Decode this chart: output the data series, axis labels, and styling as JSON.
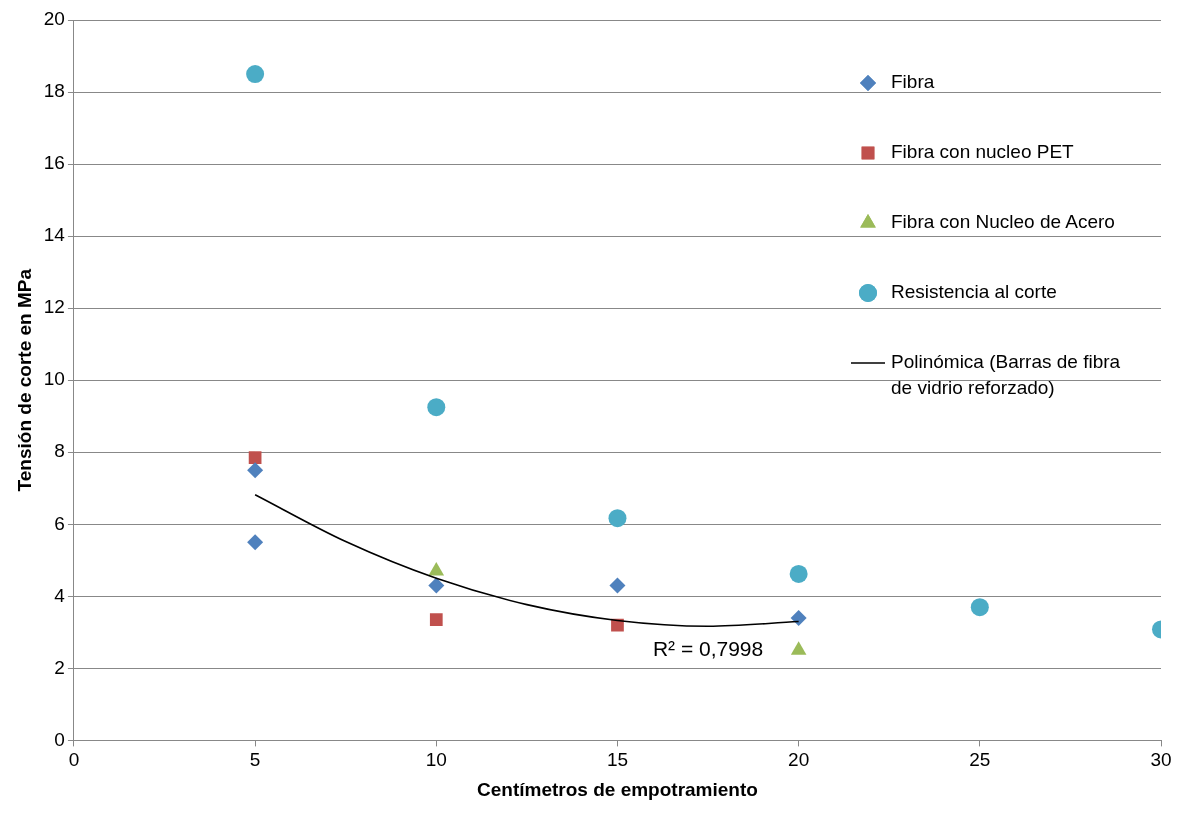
{
  "chart_data": {
    "type": "scatter",
    "xlabel": "Centímetros de empotramiento",
    "ylabel": "Tensión de corte en MPa",
    "xlim": [
      0,
      30
    ],
    "xticks": [
      0,
      5,
      10,
      15,
      20,
      25,
      30
    ],
    "ylim": [
      0,
      20
    ],
    "yticks": [
      0,
      2,
      4,
      6,
      8,
      10,
      12,
      14,
      16,
      18,
      20
    ],
    "grid": "y",
    "legend": "right",
    "series": [
      {
        "name": "Fibra",
        "color": "#4f81bd",
        "marker": "diamond",
        "x": [
          5,
          5,
          10,
          15,
          20
        ],
        "values": [
          7.5,
          5.5,
          4.3,
          4.3,
          3.4
        ]
      },
      {
        "name": "Fibra con nucleo PET",
        "color": "#c0504d",
        "marker": "square",
        "x": [
          5,
          10,
          15
        ],
        "values": [
          7.85,
          3.35,
          3.2
        ]
      },
      {
        "name": "Fibra con Nucleo de Acero",
        "color": "#9bbb59",
        "marker": "triangle",
        "x": [
          10,
          20
        ],
        "values": [
          4.7,
          2.5
        ]
      },
      {
        "name": "Resistencia al corte",
        "color": "#4bacc6",
        "marker": "circle",
        "x": [
          5,
          10,
          15,
          20,
          25,
          30
        ],
        "values": [
          18.5,
          9.25,
          6.17,
          4.62,
          3.7,
          3.08
        ]
      },
      {
        "name": "Polinómica (Barras de fibra de vidrio reforzado)",
        "type": "line",
        "color": "#000000",
        "marker": "none",
        "line_style": "solid",
        "x": [
          5,
          7.5,
          10,
          12.5,
          15,
          17.5,
          20
        ],
        "values": [
          6.82,
          5.52,
          4.5,
          3.77,
          3.33,
          3.17,
          3.3
        ]
      }
    ],
    "annotations": [
      "R² = 0,7998"
    ]
  }
}
